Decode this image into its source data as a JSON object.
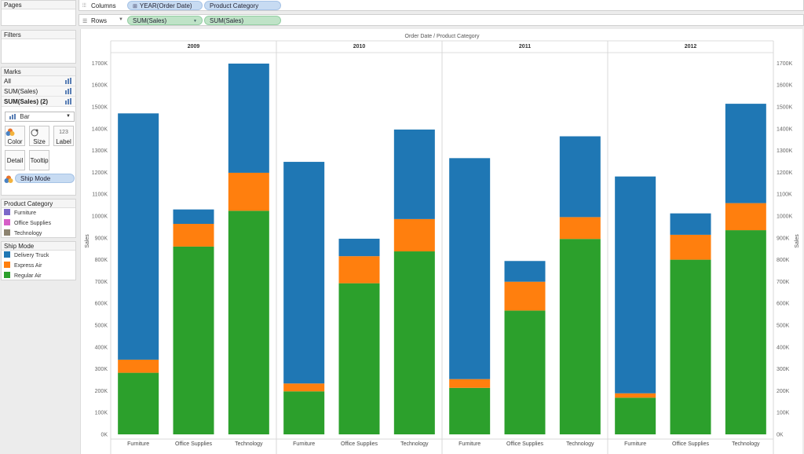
{
  "sidebar": {
    "pages_title": "Pages",
    "filters_title": "Filters",
    "marks": {
      "title": "Marks",
      "rows": [
        {
          "label": "All",
          "bold": false
        },
        {
          "label": "SUM(Sales)",
          "bold": false
        },
        {
          "label": "SUM(Sales) (2)",
          "bold": true
        }
      ],
      "mark_type": "Bar",
      "buttons": {
        "color": "Color",
        "size": "Size",
        "label": "Label",
        "label_glyph": "123",
        "detail": "Detail",
        "tooltip": "Tooltip"
      },
      "color_pill": "Ship Mode"
    },
    "legend_category": {
      "title": "Product Category",
      "items": [
        {
          "label": "Furniture",
          "color": "#7b68c9"
        },
        {
          "label": "Office Supplies",
          "color": "#d65ec7"
        },
        {
          "label": "Technology",
          "color": "#8c8370"
        }
      ]
    },
    "legend_shipmode": {
      "title": "Ship Mode",
      "items": [
        {
          "label": "Delivery Truck",
          "color": "#1f77b4"
        },
        {
          "label": "Express Air",
          "color": "#ff7f0e"
        },
        {
          "label": "Regular Air",
          "color": "#2ca02c"
        }
      ]
    }
  },
  "shelves": {
    "columns": {
      "label": "Columns",
      "pills": [
        {
          "text": "YEAR(Order Date)",
          "has_plus": true
        },
        {
          "text": "Product Category",
          "has_plus": false
        }
      ]
    },
    "rows": {
      "label": "Rows",
      "pills": [
        {
          "text": "SUM(Sales)",
          "has_dropdown": true
        },
        {
          "text": "SUM(Sales)",
          "has_dropdown": false
        }
      ]
    }
  },
  "chart_data": {
    "type": "bar",
    "stacked": true,
    "header": "Order Date  /  Product Category",
    "ylabel": "Sales",
    "ylabel_right": "Sales",
    "ylim": [
      0,
      1800
    ],
    "yticks": [
      0,
      100,
      200,
      300,
      400,
      500,
      600,
      700,
      800,
      900,
      1000,
      1100,
      1200,
      1300,
      1400,
      1500,
      1600,
      1700
    ],
    "ytick_labels": [
      "0K",
      "100K",
      "200K",
      "300K",
      "400K",
      "500K",
      "600K",
      "700K",
      "800K",
      "900K",
      "1000K",
      "1100K",
      "1200K",
      "1300K",
      "1400K",
      "1500K",
      "1600K",
      "1700K"
    ],
    "years": [
      "2009",
      "2010",
      "2011",
      "2012"
    ],
    "categories": [
      "Furniture",
      "Office Supplies",
      "Technology"
    ],
    "series": [
      {
        "name": "Regular Air",
        "color": "#2ca02c",
        "values": [
          [
            282,
            860,
            1024
          ],
          [
            197,
            692,
            838
          ],
          [
            213,
            567,
            895
          ],
          [
            168,
            800,
            935
          ]
        ]
      },
      {
        "name": "Express Air",
        "color": "#ff7f0e",
        "values": [
          [
            60,
            104,
            174
          ],
          [
            36,
            124,
            148
          ],
          [
            40,
            132,
            100
          ],
          [
            20,
            114,
            124
          ]
        ]
      },
      {
        "name": "Delivery Truck",
        "color": "#1f77b4",
        "values": [
          [
            1128,
            66,
            500
          ],
          [
            1015,
            80,
            410
          ],
          [
            1012,
            95,
            370
          ],
          [
            993,
            98,
            455
          ]
        ]
      }
    ]
  }
}
